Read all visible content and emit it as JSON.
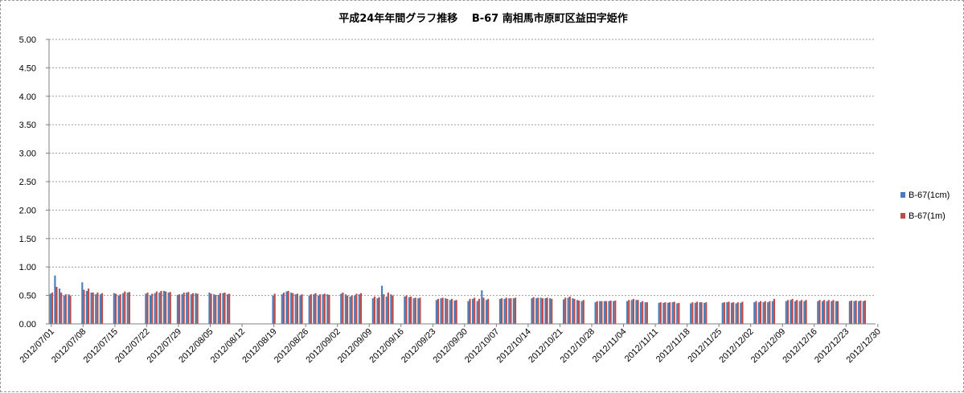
{
  "chart_data": {
    "type": "bar",
    "title": "平成24年年間グラフ推移　 B-67 南相馬市原町区益田字姫作",
    "xlabel": "",
    "ylabel": "",
    "ylim": [
      0,
      5.0
    ],
    "yticks": [
      "0.00",
      "0.50",
      "1.00",
      "1.50",
      "2.00",
      "2.50",
      "3.00",
      "3.50",
      "4.00",
      "4.50",
      "5.00"
    ],
    "xticks": [
      "2012/07/01",
      "2012/07/08",
      "2012/07/15",
      "2012/07/22",
      "2012/07/29",
      "2012/08/05",
      "2012/08/12",
      "2012/08/19",
      "2012/08/26",
      "2012/09/02",
      "2012/09/09",
      "2012/09/16",
      "2012/09/23",
      "2012/09/30",
      "2012/10/07",
      "2012/10/14",
      "2012/10/21",
      "2012/10/28",
      "2012/11/04",
      "2012/11/11",
      "2012/11/18",
      "2012/11/25",
      "2012/12/02",
      "2012/12/09",
      "2012/12/16",
      "2012/12/23",
      "2012/12/30"
    ],
    "grid": true,
    "legend_position": "right",
    "series": [
      {
        "name": "B-67(1cm)",
        "color": "#4a7ebb",
        "values": [
          0.53,
          0.85,
          0.62,
          0.5,
          0.52,
          null,
          null,
          0.73,
          0.58,
          0.55,
          0.52,
          0.52,
          null,
          null,
          0.54,
          0.5,
          0.54,
          0.55,
          null,
          null,
          null,
          0.53,
          0.5,
          0.54,
          0.55,
          0.58,
          0.55,
          null,
          0.51,
          0.52,
          0.55,
          0.52,
          0.54,
          null,
          null,
          0.55,
          0.52,
          0.51,
          0.54,
          0.52,
          null,
          null,
          null,
          null,
          null,
          null,
          null,
          null,
          null,
          0.5,
          null,
          0.52,
          0.57,
          0.55,
          0.52,
          0.5,
          null,
          0.5,
          0.52,
          0.5,
          0.52,
          0.52,
          null,
          null,
          0.53,
          0.52,
          0.48,
          0.5,
          0.52,
          null,
          null,
          0.45,
          0.45,
          0.67,
          0.48,
          0.52,
          null,
          null,
          0.48,
          0.47,
          0.45,
          0.45,
          null,
          null,
          null,
          0.42,
          0.45,
          0.45,
          0.42,
          0.41,
          null,
          null,
          0.4,
          0.44,
          0.4,
          0.59,
          0.42,
          null,
          null,
          0.44,
          0.44,
          0.45,
          0.45,
          null,
          null,
          null,
          0.45,
          0.45,
          0.46,
          0.45,
          0.45,
          null,
          null,
          0.43,
          0.46,
          0.45,
          0.42,
          0.4,
          null,
          null,
          0.38,
          0.4,
          0.4,
          0.4,
          0.4,
          null,
          null,
          0.4,
          0.42,
          0.42,
          0.38,
          0.38,
          null,
          null,
          0.37,
          0.37,
          0.37,
          0.38,
          0.36,
          null,
          null,
          0.36,
          0.37,
          0.38,
          0.37,
          null,
          null,
          null,
          0.37,
          0.38,
          0.37,
          0.36,
          0.37,
          null,
          null,
          0.38,
          0.38,
          0.38,
          0.38,
          0.4,
          null,
          null,
          0.4,
          0.42,
          0.4,
          0.4,
          0.4,
          null,
          null,
          0.4,
          0.4,
          0.4,
          0.4,
          0.4,
          null,
          null,
          0.4,
          0.4,
          0.4,
          0.4,
          null,
          null
        ]
      },
      {
        "name": "B-67(1m)",
        "color": "#be4b48",
        "values": [
          0.55,
          0.65,
          0.55,
          0.52,
          0.5,
          null,
          null,
          0.6,
          0.62,
          0.55,
          0.55,
          0.54,
          null,
          null,
          0.53,
          0.52,
          0.57,
          0.56,
          null,
          null,
          null,
          0.55,
          0.53,
          0.57,
          0.58,
          0.57,
          0.56,
          null,
          0.52,
          0.55,
          0.56,
          0.54,
          0.53,
          null,
          null,
          0.53,
          0.51,
          0.54,
          0.55,
          0.53,
          null,
          null,
          null,
          null,
          null,
          null,
          null,
          null,
          null,
          0.53,
          null,
          0.55,
          0.58,
          0.54,
          0.53,
          0.52,
          null,
          0.52,
          0.54,
          0.52,
          0.53,
          0.51,
          null,
          null,
          0.55,
          0.5,
          0.5,
          0.53,
          0.54,
          null,
          null,
          0.48,
          0.47,
          0.52,
          0.55,
          0.5,
          null,
          null,
          0.5,
          0.48,
          0.46,
          0.46,
          null,
          null,
          null,
          0.44,
          0.46,
          0.44,
          0.44,
          0.42,
          null,
          null,
          0.44,
          0.46,
          0.44,
          0.46,
          0.44,
          null,
          null,
          0.45,
          0.46,
          0.45,
          0.46,
          null,
          null,
          null,
          0.47,
          0.46,
          0.45,
          0.46,
          0.44,
          null,
          null,
          0.46,
          0.48,
          0.44,
          0.41,
          0.42,
          null,
          null,
          0.4,
          0.4,
          0.4,
          0.41,
          0.41,
          null,
          null,
          0.42,
          0.44,
          0.42,
          0.4,
          0.38,
          null,
          null,
          0.38,
          0.38,
          0.38,
          0.39,
          0.37,
          null,
          null,
          0.38,
          0.39,
          0.38,
          0.38,
          null,
          null,
          null,
          0.38,
          0.39,
          0.38,
          0.38,
          0.39,
          null,
          null,
          0.4,
          0.4,
          0.4,
          0.4,
          0.44,
          null,
          null,
          0.42,
          0.44,
          0.42,
          0.42,
          0.42,
          null,
          null,
          0.42,
          0.42,
          0.42,
          0.42,
          0.4,
          null,
          null,
          0.41,
          0.41,
          0.41,
          0.41,
          null,
          null
        ]
      }
    ]
  }
}
